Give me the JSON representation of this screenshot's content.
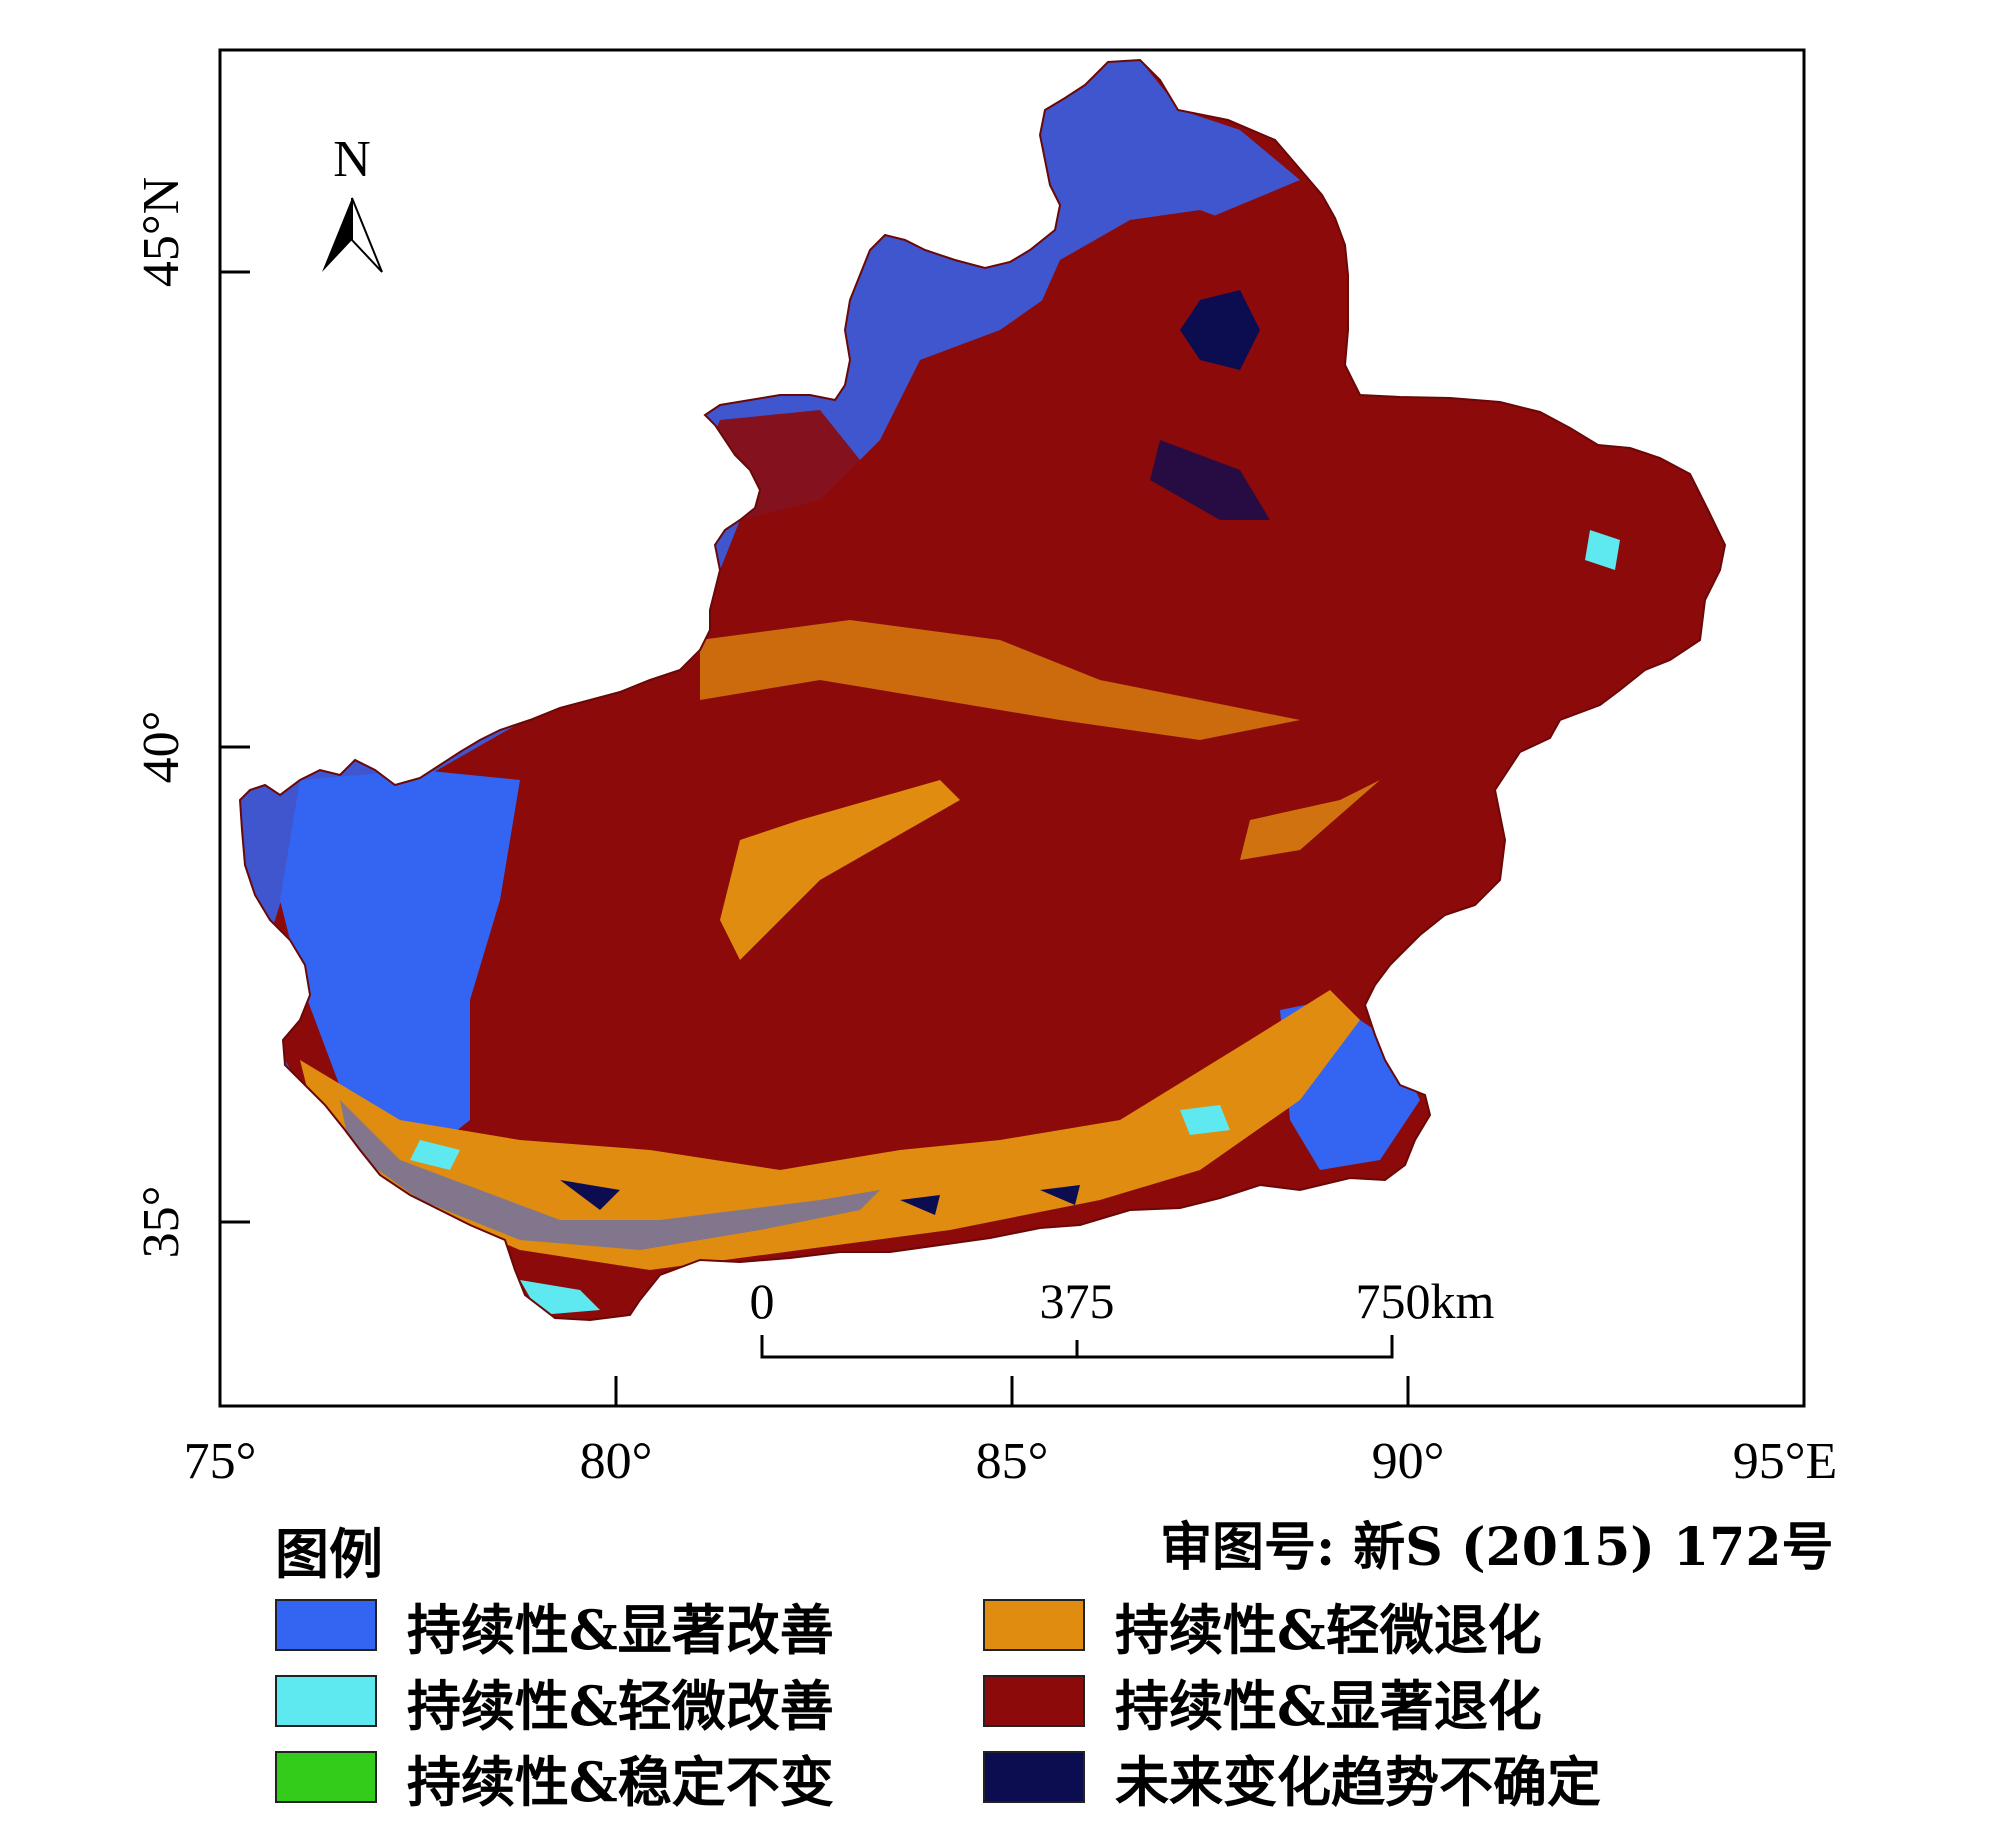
{
  "map": {
    "x_ticks": [
      "75°",
      "80°",
      "85°",
      "90°",
      "95°E"
    ],
    "y_ticks": [
      "35°",
      "40°",
      "45°N"
    ],
    "north_label": "N",
    "scale_labels": [
      "0",
      "375",
      "750km"
    ],
    "approval_number": "审图号: 新S (2015) 172号"
  },
  "legend": {
    "title": "图例",
    "items": [
      {
        "label": "持续性&显著改善",
        "color": "#3364f2"
      },
      {
        "label": "持续性&轻微改善",
        "color": "#5ee8f0"
      },
      {
        "label": "持续性&稳定不变",
        "color": "#34cc1a"
      },
      {
        "label": "持续性&轻微退化",
        "color": "#e08c10"
      },
      {
        "label": "持续性&显著退化",
        "color": "#8c0a0a"
      },
      {
        "label": "未来变化趋势不确定",
        "color": "#0c0c50"
      }
    ]
  }
}
